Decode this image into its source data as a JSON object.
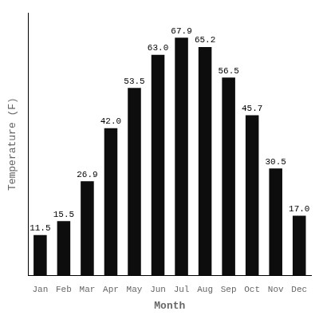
{
  "chart_data": {
    "type": "bar",
    "categories": [
      "Jan",
      "Feb",
      "Mar",
      "Apr",
      "May",
      "Jun",
      "Jul",
      "Aug",
      "Sep",
      "Oct",
      "Nov",
      "Dec"
    ],
    "values": [
      11.5,
      15.5,
      26.9,
      42.0,
      53.5,
      63.0,
      67.9,
      65.2,
      56.5,
      45.7,
      30.5,
      17.0
    ],
    "value_labels": [
      "11.5",
      "15.5",
      "26.9",
      "42.0",
      "53.5",
      "63.0",
      "67.9",
      "65.2",
      "56.5",
      "45.7",
      "30.5",
      "17.0"
    ],
    "color": "#0d0d0d",
    "xlabel": "Month",
    "ylabel": "Temperature (F)",
    "ylim": [
      0,
      75
    ],
    "grid": false,
    "data_labels": true,
    "tick_labels": "x"
  }
}
